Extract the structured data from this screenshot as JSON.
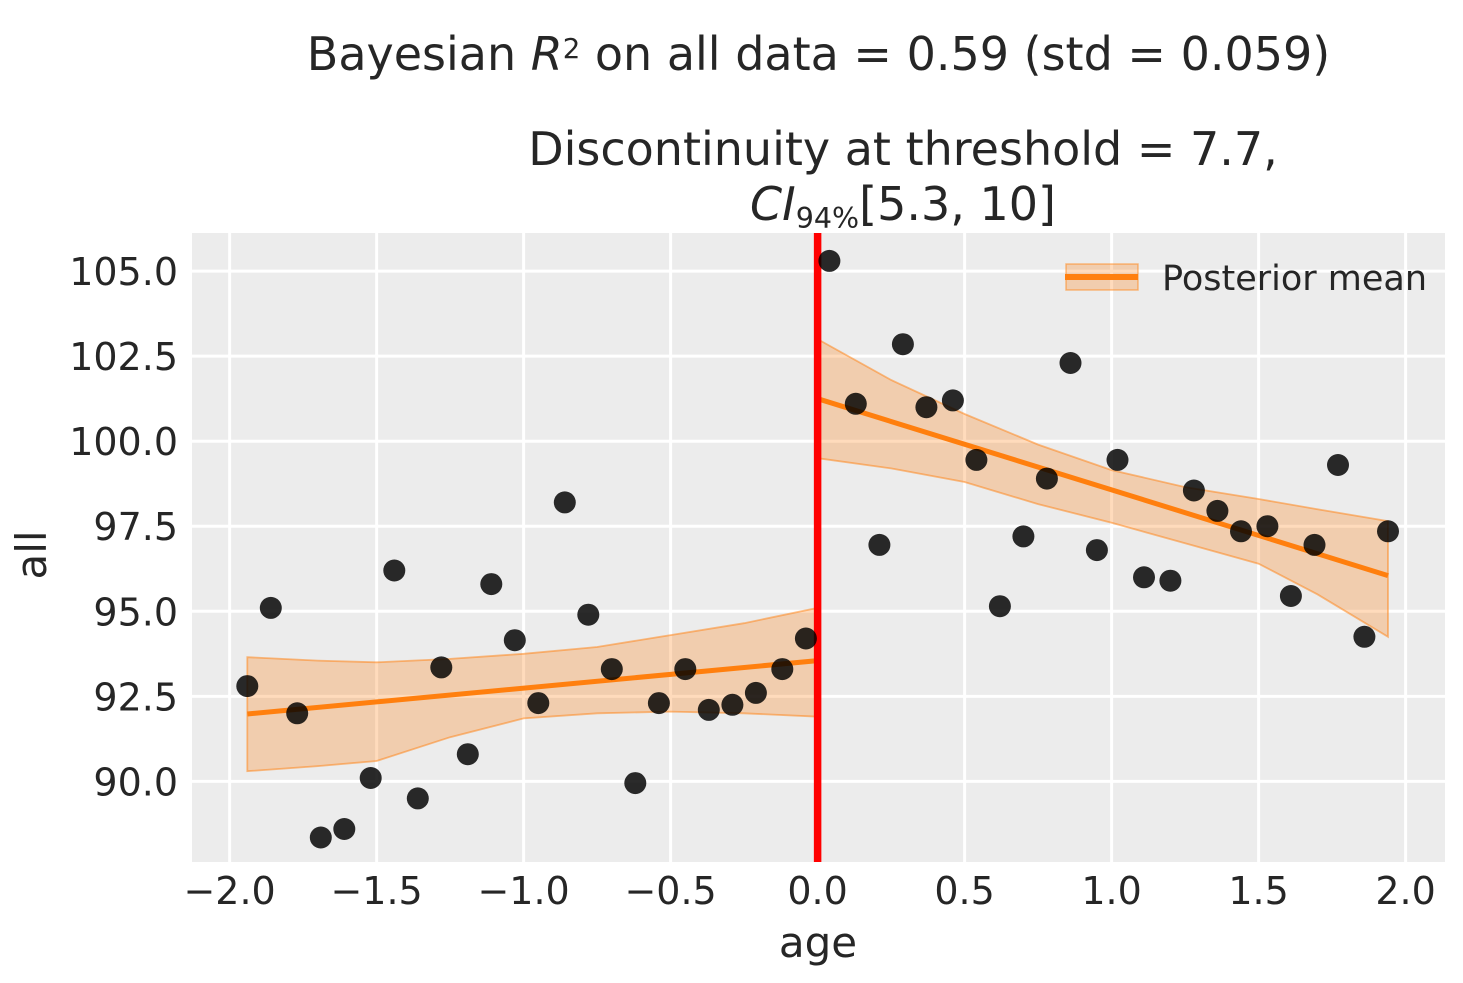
{
  "titles": {
    "suptitle_prefix": "Bayesian ",
    "suptitle_var": "R",
    "suptitle_sup": "2",
    "suptitle_suffix": " on all data = 0.59 (std = 0.059)",
    "axes_title_line1": "Discontinuity at threshold = 7.7,",
    "ci_label": "CI",
    "ci_sub": "94%",
    "ci_interval": "[5.3, 10]"
  },
  "axes": {
    "xlabel": "age",
    "ylabel": "all",
    "background": "#ececec",
    "grid_color": "#ffffff",
    "text_color": "#262626",
    "xtick_labels": [
      "−2.0",
      "−1.5",
      "−1.0",
      "−0.5",
      "0.0",
      "0.5",
      "1.0",
      "1.5",
      "2.0"
    ],
    "ytick_labels": [
      "90.0",
      "92.5",
      "95.0",
      "97.5",
      "100.0",
      "102.5",
      "105.0"
    ]
  },
  "legend": {
    "label": "Posterior mean"
  },
  "chart_data": {
    "type": "scatter",
    "title": "Bayesian R^2 on all data = 0.59 (std = 0.059)",
    "subtitle": "Discontinuity at threshold = 7.7, CI_94% [5.3, 10]",
    "xlabel": "age",
    "ylabel": "all",
    "xlim": [
      -2.128,
      2.134
    ],
    "ylim": [
      87.63,
      106.12
    ],
    "xticks": [
      -2.0,
      -1.5,
      -1.0,
      -0.5,
      0.0,
      0.5,
      1.0,
      1.5,
      2.0
    ],
    "yticks": [
      90.0,
      92.5,
      95.0,
      97.5,
      100.0,
      102.5,
      105.0
    ],
    "grid": true,
    "legend_position": "upper right",
    "threshold": {
      "x": 0.0,
      "color": "#ff0000"
    },
    "scatter": {
      "color": "#000000",
      "opacity": 0.83,
      "x": [
        -1.94,
        -1.86,
        -1.77,
        -1.69,
        -1.61,
        -1.52,
        -1.44,
        -1.36,
        -1.28,
        -1.19,
        -1.11,
        -1.03,
        -0.95,
        -0.86,
        -0.78,
        -0.7,
        -0.62,
        -0.54,
        -0.45,
        -0.37,
        -0.29,
        -0.21,
        -0.12,
        -0.04,
        0.04,
        0.13,
        0.21,
        0.29,
        0.37,
        0.46,
        0.54,
        0.62,
        0.7,
        0.78,
        0.86,
        0.95,
        1.02,
        1.11,
        1.2,
        1.28,
        1.36,
        1.44,
        1.53,
        1.61,
        1.69,
        1.77,
        1.86,
        1.94
      ],
      "y": [
        92.8,
        95.1,
        92.0,
        88.35,
        88.6,
        90.1,
        96.2,
        89.5,
        93.35,
        90.8,
        95.8,
        94.15,
        92.3,
        98.2,
        94.9,
        93.3,
        89.95,
        92.3,
        93.3,
        92.1,
        92.25,
        92.6,
        93.3,
        94.2,
        105.3,
        101.1,
        96.95,
        102.85,
        101.0,
        101.2,
        99.45,
        95.15,
        97.2,
        98.9,
        102.3,
        96.8,
        99.45,
        96.0,
        95.9,
        98.55,
        97.95,
        97.35,
        97.5,
        95.45,
        96.95,
        99.3,
        94.25,
        97.35
      ]
    },
    "posterior_mean": {
      "color": "#ff7f0e",
      "label": "Posterior mean",
      "segments": [
        {
          "x": [
            -1.94,
            0.0
          ],
          "y": [
            91.98,
            93.55
          ]
        },
        {
          "x": [
            0.0,
            1.94
          ],
          "y": [
            101.25,
            96.05
          ]
        }
      ]
    },
    "credible_band": {
      "fill": "rgba(255,127,14,0.28)",
      "edge": "rgba(255,127,14,0.5)",
      "segments": [
        {
          "x": [
            -1.94,
            -1.7,
            -1.5,
            -1.25,
            -1.0,
            -0.75,
            -0.5,
            -0.25,
            0.0
          ],
          "top": [
            93.65,
            93.55,
            93.5,
            93.6,
            93.75,
            93.95,
            94.3,
            94.65,
            95.1
          ],
          "bottom": [
            90.3,
            90.45,
            90.6,
            91.3,
            91.85,
            92.0,
            92.05,
            92.0,
            91.9
          ]
        },
        {
          "x": [
            0.0,
            0.25,
            0.5,
            0.75,
            1.0,
            1.25,
            1.5,
            1.7,
            1.94
          ],
          "top": [
            103.0,
            101.8,
            100.8,
            99.9,
            99.15,
            98.65,
            98.3,
            98.0,
            97.65
          ],
          "bottom": [
            99.5,
            99.2,
            98.8,
            98.15,
            97.6,
            97.0,
            96.4,
            95.5,
            94.25
          ]
        }
      ]
    }
  }
}
